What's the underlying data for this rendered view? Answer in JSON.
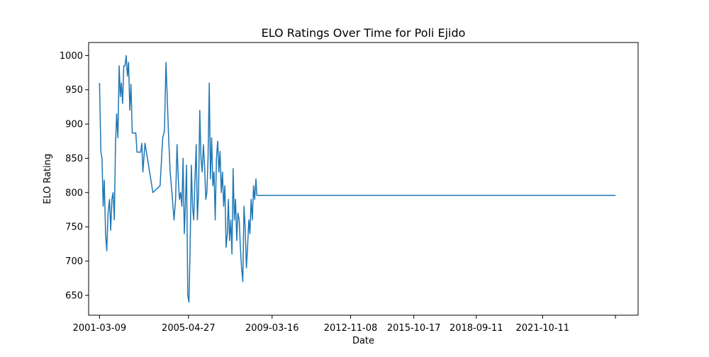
{
  "chart_data": {
    "type": "line",
    "title": "ELO Ratings Over Time for Poli Ejido",
    "xlabel": "Date",
    "ylabel": "ELO Rating",
    "x_scale": "date",
    "xlim": [
      "2000-09-05",
      "2026-03-20"
    ],
    "ylim": [
      621,
      1019
    ],
    "x_ticks": [
      "2001-03-09",
      "2005-04-27",
      "2009-03-16",
      "2012-11-08",
      "2015-10-17",
      "2018-09-11",
      "2021-10-11",
      "2025-03-01"
    ],
    "x_tick_labels": [
      "2001-03-09",
      "2005-04-27",
      "2009-03-16",
      "2012-11-08",
      "2015-10-17",
      "2018-09-11",
      "2021-10-11",
      ""
    ],
    "y_ticks": [
      650,
      700,
      750,
      800,
      850,
      900,
      950,
      1000
    ],
    "y_tick_labels": [
      "650",
      "700",
      "750",
      "800",
      "850",
      "900",
      "950",
      "1000"
    ],
    "grid": false,
    "legend": "none",
    "colors": {
      "line": "#1f77b4"
    },
    "series": [
      {
        "x": [
          "2001-03-09",
          "2001-04-01",
          "2001-04-20",
          "2001-05-10",
          "2001-05-28",
          "2001-06-20",
          "2001-07-10",
          "2001-08-01",
          "2001-08-25",
          "2001-09-15",
          "2001-10-05",
          "2001-10-25",
          "2001-11-15",
          "2001-12-05",
          "2001-12-25",
          "2002-01-15",
          "2002-02-05",
          "2002-02-25",
          "2002-03-15",
          "2002-04-05",
          "2002-04-25",
          "2002-05-15",
          "2002-06-05",
          "2002-06-25",
          "2002-07-15",
          "2002-08-05",
          "2002-08-25",
          "2002-09-15",
          "2002-10-05",
          "2002-10-25",
          "2002-11-15",
          "2002-12-05",
          "2002-12-25",
          "2003-01-15",
          "2003-02-05",
          "2003-02-25",
          "2003-03-15",
          "2003-04-20",
          "2003-09-01",
          "2004-01-01",
          "2004-02-15",
          "2004-03-15",
          "2004-04-10",
          "2004-05-01",
          "2004-05-25",
          "2004-06-20",
          "2004-07-20",
          "2004-08-25",
          "2004-09-20",
          "2004-10-15",
          "2004-11-05",
          "2004-11-25",
          "2004-12-15",
          "2005-01-05",
          "2005-01-25",
          "2005-02-15",
          "2005-03-05",
          "2005-03-25",
          "2005-04-15",
          "2005-05-05",
          "2005-05-25",
          "2005-06-15",
          "2005-07-05",
          "2005-07-25",
          "2005-08-15",
          "2005-09-05",
          "2005-09-25",
          "2005-10-15",
          "2005-11-05",
          "2005-11-25",
          "2005-12-15",
          "2006-01-05",
          "2006-01-25",
          "2006-02-15",
          "2006-03-05",
          "2006-03-25",
          "2006-04-15",
          "2006-05-05",
          "2006-05-25",
          "2006-06-15",
          "2006-07-05",
          "2006-07-25",
          "2006-08-15",
          "2006-09-05",
          "2006-09-25",
          "2006-10-15",
          "2006-11-05",
          "2006-11-25",
          "2006-12-15",
          "2007-01-05",
          "2007-01-25",
          "2007-02-15",
          "2007-03-05",
          "2007-03-25",
          "2007-04-15",
          "2007-05-05",
          "2007-05-25",
          "2007-06-15",
          "2007-07-05",
          "2007-07-25",
          "2007-08-15",
          "2007-09-05",
          "2007-09-25",
          "2007-10-15",
          "2007-11-05",
          "2007-11-25",
          "2007-12-15",
          "2008-01-05",
          "2008-01-25",
          "2008-02-15",
          "2008-03-05",
          "2008-03-25",
          "2008-04-15",
          "2008-05-05",
          "2008-05-25",
          "2008-06-15",
          "2008-07-01",
          "2008-07-15",
          "2008-08-01",
          "2008-08-10",
          "2008-08-20",
          "2008-09-01",
          "2025-03-01"
        ],
        "y": [
          960,
          860,
          850,
          780,
          818,
          740,
          715,
          770,
          790,
          745,
          790,
          800,
          760,
          870,
          915,
          880,
          985,
          940,
          960,
          930,
          985,
          985,
          1000,
          970,
          990,
          920,
          958,
          887,
          887,
          887,
          887,
          859,
          859,
          859,
          859,
          872,
          830,
          872,
          800,
          810,
          880,
          890,
          990,
          940,
          880,
          830,
          800,
          760,
          790,
          870,
          820,
          790,
          800,
          780,
          850,
          740,
          780,
          840,
          650,
          640,
          720,
          840,
          780,
          760,
          820,
          870,
          760,
          800,
          920,
          850,
          830,
          870,
          840,
          790,
          800,
          850,
          960,
          820,
          880,
          810,
          830,
          760,
          850,
          875,
          830,
          860,
          800,
          830,
          780,
          810,
          720,
          740,
          790,
          730,
          760,
          710,
          835,
          760,
          790,
          730,
          770,
          760,
          720,
          690,
          670,
          780,
          750,
          690,
          720,
          760,
          740,
          790,
          760,
          810,
          790,
          820,
          796,
          796,
          796,
          796,
          796,
          796,
          796
        ]
      }
    ]
  }
}
